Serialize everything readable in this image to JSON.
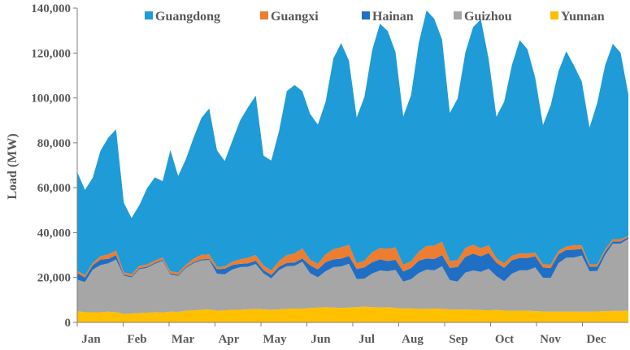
{
  "chart_data": {
    "type": "area",
    "stacked": true,
    "ylabel": "Load  (MW)",
    "xlabel": "",
    "title": "",
    "ylim": [
      0,
      140000
    ],
    "yticks": [
      0,
      20000,
      40000,
      60000,
      80000,
      100000,
      120000,
      140000
    ],
    "ytick_labels": [
      "0",
      "20,000",
      "40,000",
      "60,000",
      "80,000",
      "100,000",
      "120,000",
      "140,000"
    ],
    "months": [
      "Jan",
      "Feb",
      "Mar",
      "Apr",
      "May",
      "Jun",
      "Jul",
      "Aug",
      "Sep",
      "Oct",
      "Nov",
      "Dec"
    ],
    "legend_position": "top",
    "grid": false,
    "series": [
      {
        "name": "Yunnan",
        "color": "#FFC000",
        "values": [
          5000,
          4500,
          4500,
          4500,
          4800,
          4500,
          3800,
          4000,
          4200,
          4300,
          4600,
          4400,
          4800,
          4700,
          5200,
          5400,
          5600,
          5800,
          5200,
          5400,
          5600,
          5600,
          5800,
          6000,
          5800,
          5600,
          5800,
          6000,
          6200,
          6000,
          6400,
          6600,
          6800,
          6600,
          6400,
          6600,
          6800,
          7000,
          6800,
          6600,
          6800,
          6400,
          6200,
          6200,
          6000,
          6000,
          6200,
          6000,
          5800,
          5700,
          5700,
          5600,
          5500,
          5400,
          5600,
          5300,
          5200,
          5200,
          5200,
          5000,
          4900,
          4800,
          4900,
          4800,
          4900,
          4800,
          4800,
          4900,
          5000,
          5100,
          5100,
          5200
        ]
      },
      {
        "name": "Guizhou",
        "color": "#A6A6A6",
        "values": [
          14000,
          13500,
          19000,
          21000,
          21500,
          23500,
          17000,
          16000,
          19500,
          20000,
          21500,
          23000,
          16500,
          16000,
          19000,
          21000,
          22000,
          22000,
          16500,
          16000,
          18000,
          19000,
          19000,
          20000,
          16000,
          14000,
          17500,
          19000,
          19000,
          21000,
          15500,
          13500,
          16000,
          18000,
          18500,
          19500,
          12500,
          12500,
          15000,
          16500,
          16000,
          17000,
          12000,
          13000,
          16000,
          17500,
          17000,
          19000,
          13000,
          12500,
          16500,
          17500,
          17000,
          18500,
          15000,
          13000,
          16500,
          18000,
          18000,
          19500,
          15000,
          15000,
          21500,
          24000,
          24000,
          25000,
          18000,
          18000,
          25000,
          30000,
          30000,
          32000
        ]
      },
      {
        "name": "Hainan",
        "color": "#1F6FC5",
        "values": [
          3000,
          2000,
          2000,
          2500,
          2000,
          2000,
          500,
          500,
          500,
          500,
          500,
          500,
          500,
          500,
          500,
          500,
          500,
          500,
          2000,
          2500,
          2000,
          1500,
          1500,
          1500,
          1500,
          1500,
          1500,
          1500,
          1500,
          1500,
          3500,
          3500,
          4000,
          3500,
          3500,
          3500,
          4500,
          5000,
          5000,
          5000,
          4500,
          4500,
          4500,
          5000,
          5500,
          5000,
          5000,
          5000,
          5500,
          6500,
          7000,
          7500,
          7000,
          7000,
          6000,
          6000,
          6000,
          5500,
          5500,
          5000,
          4500,
          4500,
          4000,
          3500,
          3500,
          3000,
          2000,
          2000,
          1500,
          1000,
          1000,
          800
        ]
      },
      {
        "name": "Guangxi",
        "color": "#ED7D31",
        "values": [
          1000,
          1000,
          1000,
          1500,
          2000,
          2000,
          1000,
          1000,
          1000,
          1000,
          1000,
          1000,
          1000,
          1000,
          1000,
          1500,
          2000,
          2000,
          1000,
          1000,
          1500,
          2000,
          2500,
          2500,
          2000,
          2000,
          2500,
          3500,
          4000,
          4500,
          2500,
          2500,
          3500,
          4500,
          5000,
          5000,
          2500,
          3000,
          4500,
          5000,
          5500,
          5500,
          3000,
          3000,
          4000,
          5500,
          6000,
          6000,
          3000,
          3000,
          4000,
          4000,
          3500,
          3500,
          2000,
          2000,
          2000,
          2000,
          2000,
          1500,
          1500,
          1500,
          1500,
          1500,
          2000,
          1500,
          1000,
          1000,
          1000,
          1000,
          1000,
          500
        ]
      },
      {
        "name": "Guangdong",
        "color": "#1F9BD7",
        "values": [
          44000,
          38000,
          38000,
          47000,
          52000,
          54000,
          31000,
          25000,
          27000,
          34000,
          37000,
          34000,
          54000,
          43000,
          47000,
          54000,
          61000,
          65000,
          52000,
          47000,
          54000,
          62000,
          67000,
          71000,
          49000,
          49000,
          58000,
          73000,
          75000,
          70000,
          65000,
          62000,
          68000,
          85000,
          91000,
          82000,
          65000,
          73000,
          90000,
          100000,
          97000,
          87000,
          66000,
          74000,
          93000,
          105000,
          101000,
          90000,
          66000,
          72000,
          87000,
          97000,
          102000,
          83000,
          63000,
          72000,
          85000,
          95000,
          91000,
          78000,
          62000,
          71000,
          80000,
          87000,
          80000,
          73000,
          61000,
          72000,
          82000,
          87000,
          83000,
          63000
        ]
      }
    ],
    "legend_order": [
      "Guangdong",
      "Guangxi",
      "Hainan",
      "Guizhou",
      "Yunnan"
    ]
  }
}
